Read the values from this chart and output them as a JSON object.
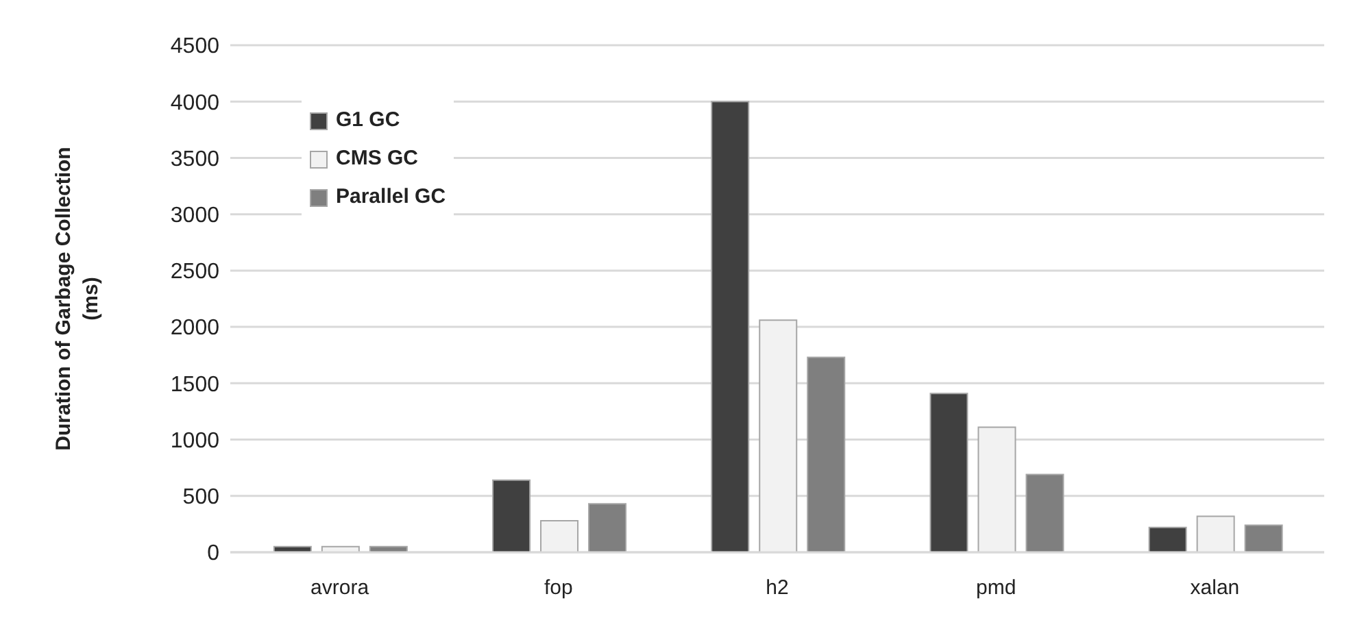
{
  "chart_data": {
    "type": "bar",
    "ylabel": "Duration of Garbage Collection (ms)",
    "categories": [
      "avrora",
      "fop",
      "h2",
      "pmd",
      "xalan"
    ],
    "series": [
      {
        "name": "G1 GC",
        "color": "#404040",
        "values": [
          50,
          640,
          4000,
          1410,
          220
        ]
      },
      {
        "name": "CMS GC",
        "color": "#f2f2f2",
        "values": [
          50,
          280,
          2060,
          1110,
          320
        ]
      },
      {
        "name": "Parallel GC",
        "color": "#7f7f7f",
        "values": [
          50,
          430,
          1730,
          690,
          240
        ]
      }
    ],
    "ylim": [
      0,
      4500
    ],
    "yticks": [
      0,
      500,
      1000,
      1500,
      2000,
      2500,
      3000,
      3500,
      4000,
      4500
    ],
    "grid": "y",
    "legend": "top left"
  }
}
